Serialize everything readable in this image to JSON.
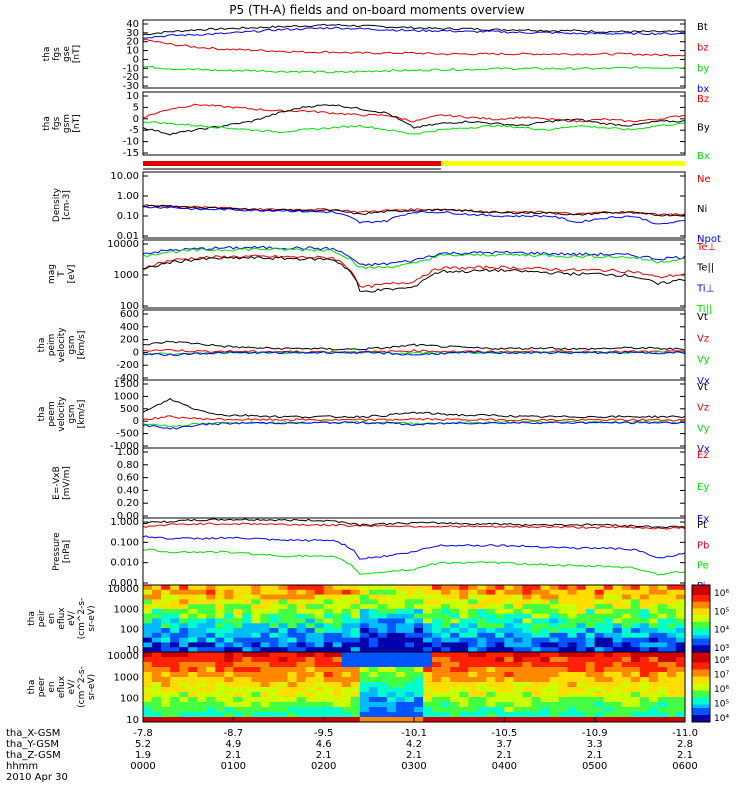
{
  "title": "P5 (TH-A) fields and on-board moments overview",
  "colors": {
    "black": "#000000",
    "red": "#e00000",
    "green": "#00dd00",
    "blue": "#0000ff",
    "yellow": "#ffff00"
  },
  "chart_data": [
    {
      "type": "line",
      "ylabel_lines": [
        "tha",
        "fgs",
        "gse",
        "[nT]"
      ],
      "ticks": [
        "40",
        "30",
        "20",
        "10",
        "0",
        "-10",
        "-20",
        "-30"
      ],
      "ylim": [
        -30,
        40
      ],
      "series": [
        {
          "name": "Bt",
          "color": "black",
          "values": [
            25,
            28,
            30,
            31,
            32,
            33,
            34,
            35,
            34,
            33,
            32,
            31,
            31,
            30,
            30,
            29,
            29,
            28,
            28,
            28,
            28
          ]
        },
        {
          "name": "bz",
          "color": "red",
          "values": [
            20,
            15,
            12,
            10,
            9,
            8,
            7,
            7,
            6,
            6,
            6,
            5,
            5,
            5,
            5,
            5,
            5,
            5,
            5,
            4,
            4
          ]
        },
        {
          "name": "by",
          "color": "green",
          "values": [
            -8,
            -10,
            -11,
            -12,
            -12,
            -13,
            -13,
            -14,
            -13,
            -12,
            -12,
            -11,
            -11,
            -10,
            -10,
            -10,
            -10,
            -10,
            -9,
            -9,
            -9
          ]
        },
        {
          "name": "bx",
          "color": "blue",
          "values": [
            22,
            24,
            25,
            26,
            28,
            30,
            31,
            32,
            31,
            30,
            29,
            29,
            28,
            28,
            27,
            27,
            26,
            26,
            26,
            26,
            26
          ]
        }
      ]
    },
    {
      "type": "line",
      "ylabel_lines": [
        "tha",
        "fgs",
        "gsm",
        "[nT]"
      ],
      "ticks": [
        "10",
        "5",
        "0",
        "-5",
        "-10",
        "-15"
      ],
      "ylim": [
        -18,
        12
      ],
      "series": [
        {
          "name": "Bz",
          "color": "red",
          "values": [
            0,
            4,
            6,
            5,
            4,
            3,
            3,
            2,
            1,
            1,
            -2,
            1,
            0,
            -1,
            0,
            -1,
            -2,
            -1,
            -2,
            -1,
            1
          ]
        },
        {
          "name": "By",
          "color": "black",
          "values": [
            -5,
            -8,
            -6,
            -4,
            -2,
            2,
            5,
            6,
            4,
            2,
            -5,
            -3,
            -2,
            -3,
            -4,
            -2,
            -1,
            -3,
            -4,
            -2,
            -2
          ]
        },
        {
          "name": "Bx",
          "color": "green",
          "values": [
            -2,
            -3,
            -4,
            -5,
            -6,
            -7,
            -6,
            -5,
            -4,
            -6,
            -8,
            -6,
            -5,
            -4,
            -5,
            -6,
            -4,
            -5,
            -6,
            -4,
            -3
          ]
        }
      ]
    },
    {
      "type": "line",
      "log": true,
      "ylabel_lines": [
        "Density",
        "[cm-3]"
      ],
      "ticks": [
        "10.00",
        "1.00",
        "0.10",
        "0.01"
      ],
      "ylim": [
        0.01,
        10
      ],
      "series": [
        {
          "name": "Ne",
          "color": "red",
          "values": [
            0.3,
            0.3,
            0.25,
            0.25,
            0.2,
            0.2,
            0.2,
            0.2,
            0.15,
            0.18,
            0.2,
            0.2,
            0.18,
            0.15,
            0.15,
            0.15,
            0.12,
            0.15,
            0.15,
            0.12,
            0.12
          ]
        },
        {
          "name": "Ni",
          "color": "black",
          "values": [
            0.28,
            0.28,
            0.24,
            0.23,
            0.19,
            0.19,
            0.18,
            0.18,
            0.12,
            0.16,
            0.18,
            0.19,
            0.17,
            0.14,
            0.14,
            0.14,
            0.11,
            0.14,
            0.14,
            0.11,
            0.11
          ]
        },
        {
          "name": "Npot",
          "color": "blue",
          "values": [
            0.25,
            0.25,
            0.2,
            0.2,
            0.18,
            0.18,
            0.16,
            0.15,
            0.05,
            0.06,
            0.15,
            0.15,
            0.12,
            0.1,
            0.1,
            0.1,
            0.05,
            0.08,
            0.1,
            0.04,
            0.06
          ]
        }
      ]
    },
    {
      "type": "line",
      "log": true,
      "ylabel_lines": [
        "mag",
        "T",
        "[eV]"
      ],
      "ticks": [
        "10000",
        "1000",
        "100"
      ],
      "ylim": [
        100,
        10000
      ],
      "series": [
        {
          "name": "Te⊥",
          "color": "red",
          "values": [
            1500,
            2500,
            3000,
            3200,
            3300,
            3200,
            3100,
            3000,
            400,
            500,
            600,
            1500,
            1500,
            1600,
            1500,
            1400,
            1300,
            1300,
            1200,
            800,
            1000
          ]
        },
        {
          "name": "Te||",
          "color": "black",
          "values": [
            1300,
            2200,
            2700,
            2900,
            3000,
            2900,
            2800,
            2700,
            300,
            350,
            400,
            1200,
            1200,
            1300,
            1200,
            1100,
            1000,
            1000,
            900,
            500,
            700
          ]
        },
        {
          "name": "Ti⊥",
          "color": "blue",
          "values": [
            4000,
            5000,
            5500,
            5800,
            6000,
            5900,
            5800,
            5500,
            1800,
            2000,
            2500,
            4000,
            4200,
            4300,
            4200,
            4000,
            3800,
            3800,
            3600,
            2800,
            3200
          ]
        },
        {
          "name": "Ti||",
          "color": "green",
          "values": [
            3500,
            4500,
            5000,
            5200,
            5400,
            5300,
            5200,
            5000,
            1500,
            1600,
            2000,
            3500,
            3600,
            3700,
            3600,
            3500,
            3300,
            3300,
            3100,
            2300,
            2700
          ]
        }
      ]
    },
    {
      "type": "line",
      "ylabel_lines": [
        "tha",
        "peim",
        "velocity",
        "gsm",
        "[km/s]"
      ],
      "ticks": [
        "600",
        "400",
        "200",
        "0",
        "-200",
        "-400"
      ],
      "ylim": [
        -400,
        600
      ],
      "series": [
        {
          "name": "Vt",
          "color": "black",
          "values": [
            100,
            150,
            120,
            80,
            60,
            50,
            50,
            40,
            40,
            60,
            100,
            80,
            60,
            50,
            50,
            60,
            40,
            50,
            60,
            50,
            40
          ]
        },
        {
          "name": "Vz",
          "color": "red",
          "values": [
            20,
            30,
            10,
            10,
            5,
            5,
            5,
            5,
            0,
            5,
            20,
            10,
            5,
            5,
            5,
            5,
            5,
            5,
            5,
            5,
            5
          ]
        },
        {
          "name": "Vy",
          "color": "green",
          "values": [
            -20,
            -30,
            -20,
            -10,
            -10,
            -10,
            -5,
            -5,
            -5,
            -10,
            -20,
            -10,
            -10,
            -5,
            -5,
            -5,
            -5,
            -5,
            -5,
            -5,
            -5
          ]
        },
        {
          "name": "Vx",
          "color": "blue",
          "values": [
            -30,
            -40,
            -20,
            -10,
            -10,
            -10,
            -10,
            -5,
            -10,
            -20,
            -40,
            -20,
            -10,
            -10,
            -10,
            -10,
            -10,
            -10,
            -10,
            -10,
            -10
          ]
        }
      ]
    },
    {
      "type": "line",
      "ylabel_lines": [
        "tha",
        "peem",
        "velocity",
        "gsm",
        "[km/s]"
      ],
      "ticks": [
        "1500",
        "1000",
        "500",
        "0",
        "-500",
        "-1000"
      ],
      "ylim": [
        -1000,
        1500
      ],
      "series": [
        {
          "name": "Vt",
          "color": "black",
          "values": [
            300,
            800,
            400,
            200,
            200,
            150,
            150,
            150,
            150,
            200,
            300,
            250,
            200,
            200,
            150,
            150,
            150,
            150,
            150,
            150,
            150
          ]
        },
        {
          "name": "Vz",
          "color": "red",
          "values": [
            50,
            150,
            80,
            50,
            40,
            40,
            40,
            30,
            30,
            40,
            60,
            50,
            40,
            40,
            30,
            30,
            30,
            30,
            30,
            30,
            30
          ]
        },
        {
          "name": "Vy",
          "color": "green",
          "values": [
            -100,
            -200,
            -120,
            -80,
            -60,
            -60,
            -60,
            -50,
            -50,
            -60,
            -100,
            -80,
            -60,
            -60,
            -50,
            -50,
            -50,
            -50,
            -50,
            -50,
            -50
          ]
        },
        {
          "name": "Vx",
          "color": "blue",
          "values": [
            -150,
            -300,
            -150,
            -100,
            -80,
            -80,
            -80,
            -70,
            -70,
            -80,
            -150,
            -100,
            -80,
            -80,
            -70,
            -70,
            -70,
            -70,
            -70,
            -70,
            -70
          ]
        }
      ]
    },
    {
      "type": "line",
      "ylabel_lines": [
        "E=-VxB",
        "[mV/m]"
      ],
      "ticks": [
        "1.00",
        "0.80",
        "0.60",
        "0.40",
        "0.20",
        "0.00"
      ],
      "ylim": [
        0,
        1
      ],
      "series": [
        {
          "name": "Ez",
          "color": "red",
          "values": []
        },
        {
          "name": "Ey",
          "color": "green",
          "values": []
        },
        {
          "name": "Ex",
          "color": "blue",
          "values": []
        }
      ]
    },
    {
      "type": "line",
      "log": true,
      "ylabel_lines": [
        "Pressure",
        "[nPa]"
      ],
      "ticks": [
        "1.000",
        "0.100",
        "0.010",
        "0.001"
      ],
      "ylim": [
        0.001,
        1
      ],
      "series": [
        {
          "name": "Pt",
          "color": "black",
          "values": [
            0.6,
            0.7,
            0.8,
            0.85,
            0.85,
            0.8,
            0.8,
            0.75,
            0.5,
            0.55,
            0.6,
            0.6,
            0.55,
            0.55,
            0.5,
            0.5,
            0.5,
            0.5,
            0.45,
            0.4,
            0.4
          ]
        },
        {
          "name": "Pb",
          "color": "red",
          "values": [
            0.4,
            0.5,
            0.55,
            0.55,
            0.55,
            0.52,
            0.5,
            0.48,
            0.45,
            0.45,
            0.42,
            0.42,
            0.42,
            0.4,
            0.4,
            0.4,
            0.38,
            0.38,
            0.38,
            0.35,
            0.35
          ]
        },
        {
          "name": "Pe",
          "color": "green",
          "values": [
            0.04,
            0.03,
            0.03,
            0.03,
            0.025,
            0.02,
            0.02,
            0.018,
            0.003,
            0.004,
            0.005,
            0.01,
            0.01,
            0.01,
            0.009,
            0.008,
            0.007,
            0.007,
            0.006,
            0.003,
            0.004
          ]
        },
        {
          "name": "Pi",
          "color": "blue",
          "values": [
            0.15,
            0.12,
            0.12,
            0.13,
            0.12,
            0.1,
            0.1,
            0.1,
            0.015,
            0.02,
            0.03,
            0.06,
            0.06,
            0.06,
            0.055,
            0.05,
            0.045,
            0.045,
            0.04,
            0.015,
            0.025
          ]
        }
      ]
    },
    {
      "type": "heatmap",
      "ylabel_lines": [
        "tha",
        "peir",
        "en",
        "eflux",
        "eV/",
        "(cm^2-s-",
        "sr-eV)"
      ],
      "ticks": [
        "10000",
        "1000",
        "100",
        "10"
      ],
      "ylim": [
        10,
        20000
      ],
      "colorbar_ticks": [
        "10⁶",
        "10⁵",
        "10⁴",
        "10³"
      ]
    },
    {
      "type": "heatmap",
      "ylabel_lines": [
        "tha",
        "peer",
        "en",
        "eflux",
        "eV/",
        "(cm^2-s-",
        "sr-eV)"
      ],
      "ticks": [
        "10000",
        "1000",
        "100",
        "10"
      ],
      "ylim": [
        10,
        20000
      ],
      "colorbar_ticks": [
        "10⁸",
        "10⁷",
        "10⁶",
        "10⁵",
        "10⁴"
      ]
    }
  ],
  "xaxis": {
    "rows": [
      {
        "label": "tha_X-GSM",
        "values": [
          "-7.8",
          "-8.7",
          "-9.5",
          "-10.1",
          "-10.5",
          "-10.9",
          "-11.0"
        ]
      },
      {
        "label": "tha_Y-GSM",
        "values": [
          "5.2",
          "4.9",
          "4.6",
          "4.2",
          "3.7",
          "3.3",
          "2.8"
        ]
      },
      {
        "label": "tha_Z-GSM",
        "values": [
          "1.9",
          "2.1",
          "2.1",
          "2.1",
          "2.1",
          "2.1",
          "2.1"
        ]
      },
      {
        "label": "hhmm",
        "values": [
          "0000",
          "0100",
          "0200",
          "0300",
          "0400",
          "0500",
          "0600"
        ]
      }
    ],
    "date": "2010 Apr 30"
  },
  "modebar": {
    "segments": [
      {
        "from": 0,
        "to": 0.55,
        "color": "red"
      },
      {
        "from": 0.55,
        "to": 1,
        "color": "yellow"
      }
    ]
  }
}
